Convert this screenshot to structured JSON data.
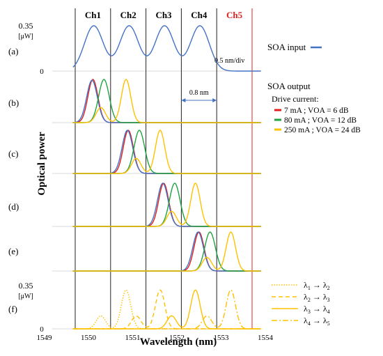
{
  "chart_data": {
    "type": "line",
    "xlabel": "Wavelength (nm)",
    "ylabel": "Optical power",
    "xlim": [
      1549,
      1554
    ],
    "x_ticks": [
      "1549",
      "1550",
      "1551",
      "1552",
      "1553",
      "1554"
    ],
    "channels": [
      {
        "label": "Ch1",
        "x": 1550.1,
        "color": "#000000"
      },
      {
        "label": "Ch2",
        "x": 1550.9,
        "color": "#000000"
      },
      {
        "label": "Ch3",
        "x": 1551.7,
        "color": "#000000"
      },
      {
        "label": "Ch4",
        "x": 1552.5,
        "color": "#000000"
      },
      {
        "label": "Ch5",
        "x": 1553.3,
        "color": "#e02020"
      }
    ],
    "channel_boundaries": [
      1549.7,
      1550.5,
      1551.3,
      1552.1,
      1552.9,
      1553.7
    ],
    "panels": [
      {
        "label": "(a)",
        "ytick_top": "0.35",
        "ytick_unit": "[μW]",
        "ytick_zero": "0",
        "annotation": "0.5 nm/div",
        "series": [
          {
            "name": "SOA input",
            "color": "#4472c4",
            "style": "solid",
            "peaks": [
              [
                1550.12,
                1.0
              ],
              [
                1550.92,
                1.0
              ],
              [
                1551.72,
                1.0
              ],
              [
                1552.52,
                1.0
              ]
            ],
            "width": 0.3
          }
        ]
      },
      {
        "label": "(b)",
        "annotation": "0.8 nm",
        "series": [
          {
            "name": "7 mA ; VOA = 6 dB",
            "color": "#e02020",
            "peaks": [
              [
                1550.1,
                1.0
              ]
            ],
            "width": 0.16
          },
          {
            "name": "blue",
            "color": "#4472c4",
            "peaks": [
              [
                1550.08,
                0.98
              ]
            ],
            "width": 0.17
          },
          {
            "name": "80 mA ; VOA = 12 dB",
            "color": "#21a33f",
            "peaks": [
              [
                1550.35,
                1.0
              ]
            ],
            "width": 0.17
          },
          {
            "name": "250 mA ; VOA = 24 dB",
            "color": "#ffc000",
            "peaks": [
              [
                1550.85,
                1.0
              ],
              [
                1550.28,
                0.35
              ]
            ],
            "width": 0.15
          }
        ]
      },
      {
        "label": "(c)",
        "series": [
          {
            "name": "red",
            "color": "#e02020",
            "peaks": [
              [
                1550.9,
                1.0
              ]
            ],
            "width": 0.16
          },
          {
            "name": "blue",
            "color": "#4472c4",
            "peaks": [
              [
                1550.88,
                1.0
              ]
            ],
            "width": 0.17
          },
          {
            "name": "green",
            "color": "#21a33f",
            "peaks": [
              [
                1551.15,
                1.0
              ]
            ],
            "width": 0.17
          },
          {
            "name": "yellow",
            "color": "#ffc000",
            "peaks": [
              [
                1551.62,
                1.0
              ],
              [
                1551.08,
                0.35
              ]
            ],
            "width": 0.15
          }
        ]
      },
      {
        "label": "(d)",
        "series": [
          {
            "name": "red",
            "color": "#e02020",
            "peaks": [
              [
                1551.7,
                1.0
              ]
            ],
            "width": 0.16
          },
          {
            "name": "blue",
            "color": "#4472c4",
            "peaks": [
              [
                1551.68,
                1.0
              ]
            ],
            "width": 0.17
          },
          {
            "name": "green",
            "color": "#21a33f",
            "peaks": [
              [
                1551.95,
                1.0
              ]
            ],
            "width": 0.17
          },
          {
            "name": "yellow",
            "color": "#ffc000",
            "peaks": [
              [
                1552.42,
                1.0
              ],
              [
                1551.88,
                0.35
              ]
            ],
            "width": 0.15
          }
        ]
      },
      {
        "label": "(e)",
        "series": [
          {
            "name": "red",
            "color": "#e02020",
            "peaks": [
              [
                1552.5,
                1.0
              ]
            ],
            "width": 0.16
          },
          {
            "name": "blue",
            "color": "#4472c4",
            "peaks": [
              [
                1552.48,
                1.0
              ]
            ],
            "width": 0.17
          },
          {
            "name": "green",
            "color": "#21a33f",
            "peaks": [
              [
                1552.75,
                1.0
              ]
            ],
            "width": 0.17
          },
          {
            "name": "yellow",
            "color": "#ffc000",
            "peaks": [
              [
                1553.22,
                1.0
              ],
              [
                1552.68,
                0.35
              ]
            ],
            "width": 0.15
          }
        ]
      },
      {
        "label": "(f)",
        "ytick_top": "0.35",
        "ytick_unit": "[μW]",
        "ytick_zero": "0",
        "series": [
          {
            "name": "λ1 → λ2",
            "color": "#ffc000",
            "style": "dotted",
            "peaks": [
              [
                1550.85,
                0.9
              ],
              [
                1550.28,
                0.3
              ]
            ],
            "width": 0.15
          },
          {
            "name": "λ2 → λ3",
            "color": "#ffc000",
            "style": "dashed",
            "peaks": [
              [
                1551.62,
                0.9
              ],
              [
                1551.08,
                0.3
              ]
            ],
            "width": 0.15
          },
          {
            "name": "λ3 → λ4",
            "color": "#ffc000",
            "style": "solid",
            "peaks": [
              [
                1552.42,
                0.9
              ],
              [
                1551.88,
                0.3
              ]
            ],
            "width": 0.15
          },
          {
            "name": "λ4 → λ5",
            "color": "#ffc000",
            "style": "dashdot",
            "peaks": [
              [
                1553.22,
                0.9
              ],
              [
                1552.68,
                0.3
              ]
            ],
            "width": 0.15
          }
        ]
      }
    ],
    "legend_soa_input": "SOA input",
    "legend_soa_output": "SOA output",
    "legend_drive_current": "Drive current:",
    "legend_output_items": [
      {
        "label": "7 mA ; VOA = 6 dB",
        "color": "#e02020"
      },
      {
        "label": "80 mA ; VOA = 12 dB",
        "color": "#21a33f"
      },
      {
        "label": "250 mA ; VOA = 24 dB",
        "color": "#ffc000"
      }
    ],
    "legend_conversion_items": [
      {
        "from": "1",
        "to": "2",
        "style": "dotted"
      },
      {
        "from": "2",
        "to": "3",
        "style": "dashed"
      },
      {
        "from": "3",
        "to": "4",
        "style": "solid"
      },
      {
        "from": "4",
        "to": "5",
        "style": "dashdot"
      }
    ]
  }
}
